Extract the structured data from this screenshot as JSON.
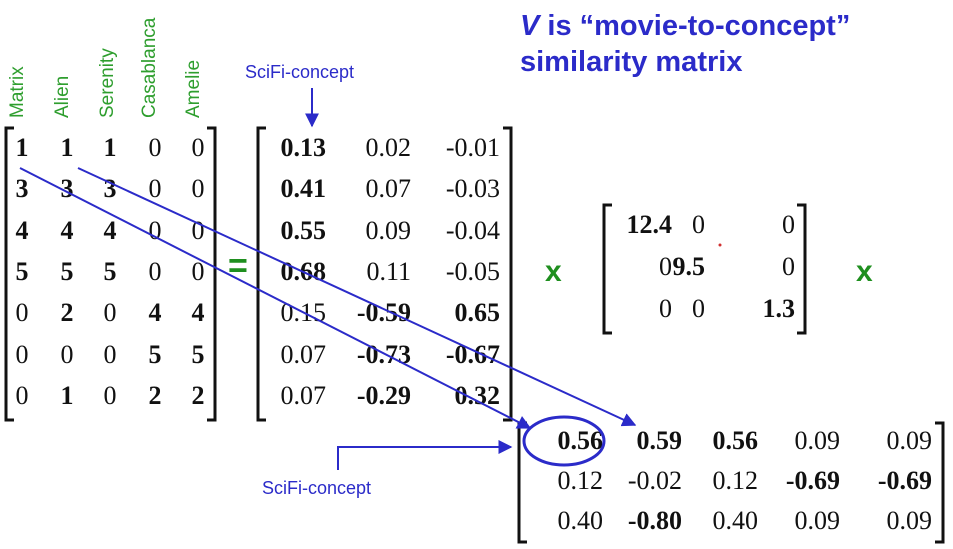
{
  "title": {
    "v": "V",
    "line1_rest": " is “movie-to-concept”",
    "line2": "similarity matrix"
  },
  "movies": [
    "Matrix",
    "Alien",
    "Serenity",
    "Casablanca",
    "Amelie"
  ],
  "A": [
    [
      "1",
      "1",
      "1",
      "0",
      "0"
    ],
    [
      "3",
      "3",
      "3",
      "0",
      "0"
    ],
    [
      "4",
      "4",
      "4",
      "0",
      "0"
    ],
    [
      "5",
      "5",
      "5",
      "0",
      "0"
    ],
    [
      "0",
      "2",
      "0",
      "4",
      "4"
    ],
    [
      "0",
      "0",
      "0",
      "5",
      "5"
    ],
    [
      "0",
      "1",
      "0",
      "2",
      "2"
    ]
  ],
  "A_bold": [
    [
      1,
      1,
      1,
      0,
      0
    ],
    [
      1,
      1,
      1,
      0,
      0
    ],
    [
      1,
      1,
      1,
      0,
      0
    ],
    [
      1,
      1,
      1,
      0,
      0
    ],
    [
      0,
      1,
      0,
      1,
      1
    ],
    [
      0,
      0,
      0,
      1,
      1
    ],
    [
      0,
      1,
      0,
      1,
      1
    ]
  ],
  "U": [
    [
      "0.13",
      "0.02",
      "-0.01"
    ],
    [
      "0.41",
      "0.07",
      "-0.03"
    ],
    [
      "0.55",
      "0.09",
      "-0.04"
    ],
    [
      "0.68",
      "0.11",
      "-0.05"
    ],
    [
      "0.15",
      "-0.59",
      "0.65"
    ],
    [
      "0.07",
      "-0.73",
      "-0.67"
    ],
    [
      "0.07",
      "-0.29",
      "0.32"
    ]
  ],
  "U_bold": [
    [
      1,
      0,
      0
    ],
    [
      1,
      0,
      0
    ],
    [
      1,
      0,
      0
    ],
    [
      1,
      0,
      0
    ],
    [
      0,
      1,
      1
    ],
    [
      0,
      1,
      1
    ],
    [
      0,
      1,
      1
    ]
  ],
  "S": [
    [
      "12.4",
      "0",
      "0"
    ],
    [
      "0",
      "9.5",
      "0"
    ],
    [
      "0",
      "0",
      "1.3"
    ]
  ],
  "S_bold": [
    [
      1,
      0,
      0
    ],
    [
      0,
      1,
      0
    ],
    [
      0,
      0,
      1
    ]
  ],
  "VT": [
    [
      "0.56",
      "0.59",
      "0.56",
      "0.09",
      "0.09"
    ],
    [
      "0.12",
      "-0.02",
      "0.12",
      "-0.69",
      "-0.69"
    ],
    [
      "0.40",
      "-0.80",
      "0.40",
      "0.09",
      "0.09"
    ]
  ],
  "VT_bold": [
    [
      1,
      1,
      1,
      0,
      0
    ],
    [
      0,
      0,
      0,
      1,
      1
    ],
    [
      0,
      1,
      0,
      0,
      0
    ]
  ],
  "operators": {
    "equals": "=",
    "times1": "x",
    "times2": "x"
  },
  "labels": {
    "scifi_top": "SciFi-concept",
    "scifi_bottom": "SciFi-concept"
  },
  "colors": {
    "blue": "#2b2bc9",
    "green": "#1f8f1f",
    "text": "#111111"
  }
}
